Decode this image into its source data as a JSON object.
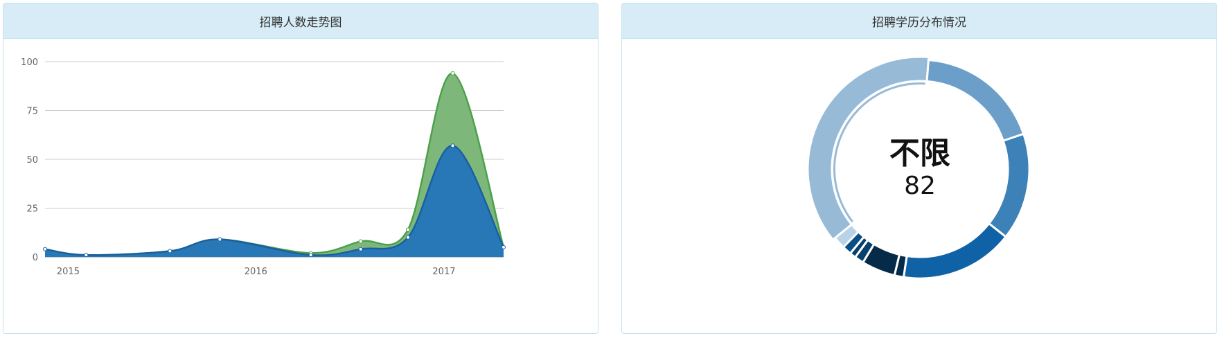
{
  "panels": {
    "left": {
      "title": "招聘人数走势图"
    },
    "right": {
      "title": "招聘学历分布情况"
    }
  },
  "chart_data": [
    {
      "type": "area",
      "title": "招聘人数走势图",
      "stacked": true,
      "ylim": [
        0,
        100
      ],
      "yticks": [
        0,
        25,
        50,
        75,
        100
      ],
      "xticks": [
        {
          "label": "2015",
          "x": "2015-01-01"
        },
        {
          "label": "2016",
          "x": "2016-01-01"
        },
        {
          "label": "2017",
          "x": "2017-01-01"
        }
      ],
      "xlim": [
        "2014-12-20",
        "2017-05-30"
      ],
      "x": [
        "2014-12-20",
        "2015-03-10",
        "2015-08-20",
        "2015-11-25",
        "2016-05-20",
        "2016-08-25",
        "2016-11-25",
        "2017-02-20",
        "2017-05-30"
      ],
      "series": [
        {
          "values": [
            4,
            1,
            3,
            9,
            1,
            4,
            10,
            57,
            5
          ],
          "color": "#2878b8"
        },
        {
          "values": [
            0,
            0,
            0,
            0,
            1,
            4,
            4,
            37,
            0
          ],
          "color": "#7db87a"
        }
      ],
      "grid": true,
      "colors": {
        "upper_line": "#4ba04b",
        "lower_line": "#1a5fa0"
      }
    },
    {
      "type": "pie",
      "title": "招聘学历分布情况",
      "donut": true,
      "center": {
        "label": "不限",
        "value": "82"
      },
      "slices": [
        {
          "label": "不限",
          "value": 82,
          "color": "#97bad7"
        },
        {
          "value": 41,
          "color": "#6b9fca"
        },
        {
          "value": 35,
          "color": "#3c82b8"
        },
        {
          "value": 37,
          "color": "#0f62a6"
        },
        {
          "value": 3,
          "color": "#062b48"
        },
        {
          "value": 11,
          "color": "#062b48"
        },
        {
          "value": 3,
          "color": "#08406d"
        },
        {
          "value": 2,
          "color": "#08406d"
        },
        {
          "value": 3,
          "color": "#0a4e86"
        },
        {
          "value": 4,
          "color": "#b8d2e7"
        }
      ]
    }
  ]
}
